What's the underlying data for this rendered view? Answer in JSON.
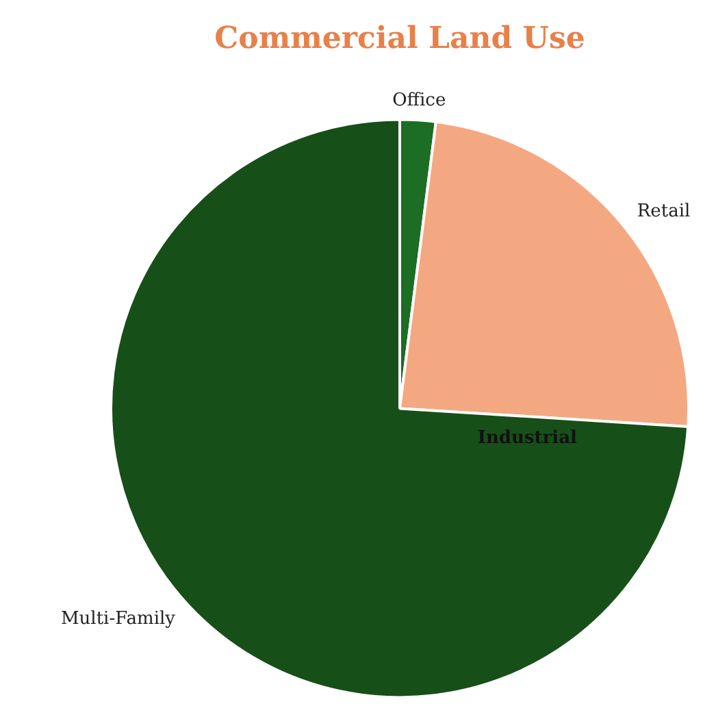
{
  "chart_data": {
    "type": "pie",
    "title": "Commercial Land Use",
    "categories": [
      "Office",
      "Retail",
      "Industrial",
      "Multi-Family"
    ],
    "values": [
      2,
      24,
      0,
      74
    ],
    "colors": [
      "#1b6e23",
      "#f4a882",
      "#8fbc8f",
      "#174f18"
    ],
    "legend": false
  }
}
